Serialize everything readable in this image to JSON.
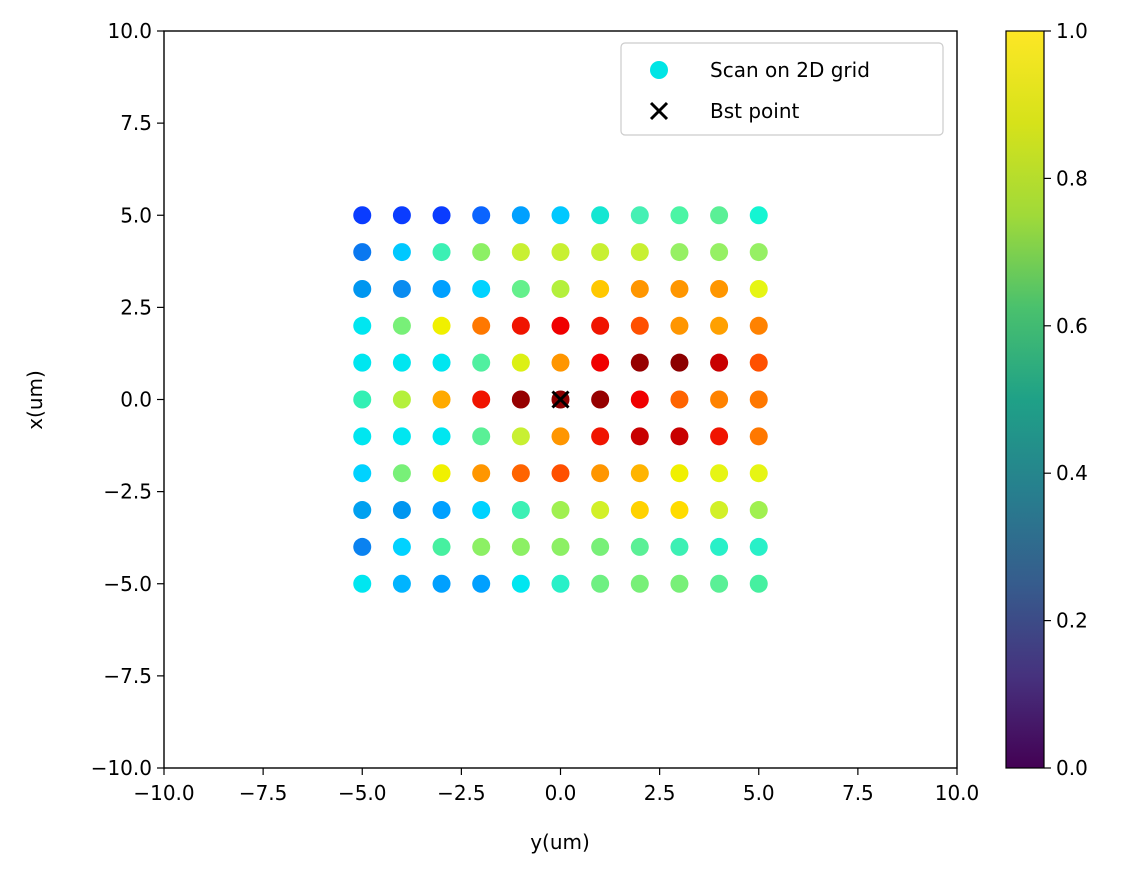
{
  "chart_data": {
    "type": "scatter",
    "title": "",
    "xlabel": "y(um)",
    "ylabel": "x(um)",
    "xlim": [
      -10,
      10
    ],
    "ylim": [
      -10,
      10
    ],
    "xticks": [
      "−10.0",
      "−7.5",
      "−5.0",
      "−2.5",
      "0.0",
      "2.5",
      "5.0",
      "7.5",
      "10.0"
    ],
    "yticks": [
      "−10.0",
      "−7.5",
      "−5.0",
      "−2.5",
      "0.0",
      "2.5",
      "5.0",
      "7.5",
      "10.0"
    ],
    "grid": false,
    "legend_position": "top-right",
    "series": [
      {
        "name": "Scan on 2D grid",
        "marker": "circle",
        "legend_color": "#00e5e5",
        "x_values": [
          -5,
          -4,
          -3,
          -2,
          -1,
          0,
          1,
          2,
          3,
          4,
          5
        ],
        "y_values": [
          5,
          4,
          3,
          2,
          1,
          0,
          -1,
          -2,
          -3,
          -4,
          -5
        ],
        "color_rows": [
          [
            "#0a3cff",
            "#0a3cff",
            "#0a3cff",
            "#0a64ff",
            "#00a0ff",
            "#00c8ff",
            "#14e6d2",
            "#46f0b4",
            "#4bf5a5",
            "#5af096",
            "#14f5d2"
          ],
          [
            "#0a78f0",
            "#00c8ff",
            "#3cf0b4",
            "#8cf064",
            "#c8f032",
            "#c8f032",
            "#c8f032",
            "#c8f032",
            "#96f064",
            "#96f064",
            "#96f064"
          ],
          [
            "#0096f0",
            "#0a8cf0",
            "#00a0ff",
            "#00d2ff",
            "#64f08c",
            "#b4f03c",
            "#ffc800",
            "#ff9600",
            "#ff9600",
            "#ff9600",
            "#e6f514"
          ],
          [
            "#00e6f0",
            "#78f078",
            "#f0f000",
            "#ff7800",
            "#f01400",
            "#f00000",
            "#f01400",
            "#ff5000",
            "#ff9600",
            "#ffa000",
            "#ff8200"
          ],
          [
            "#00e6f0",
            "#00e6f0",
            "#00e6f0",
            "#50f0a0",
            "#dcf014",
            "#ff9600",
            "#f00000",
            "#960000",
            "#8c0000",
            "#c80000",
            "#ff5000"
          ],
          [
            "#32f0b4",
            "#b4f03c",
            "#ffaa00",
            "#f01400",
            "#960000",
            "#8c0000",
            "#960000",
            "#f00000",
            "#ff6400",
            "#ff8200",
            "#ff7800"
          ],
          [
            "#00e6f0",
            "#00e6f0",
            "#00e6f0",
            "#5af096",
            "#c8f032",
            "#ff9600",
            "#f01400",
            "#c80000",
            "#c80000",
            "#f01400",
            "#ff7800"
          ],
          [
            "#00d2ff",
            "#78f078",
            "#f0f000",
            "#ff9600",
            "#ff6400",
            "#ff5000",
            "#ff9600",
            "#ffb400",
            "#f0f000",
            "#e6f514",
            "#e6f514"
          ],
          [
            "#00a0f0",
            "#0096f0",
            "#00a0ff",
            "#00d2ff",
            "#3cf0b4",
            "#a0f050",
            "#d2f028",
            "#ffd200",
            "#ffdc00",
            "#d2f028",
            "#a0f050"
          ],
          [
            "#0a82f0",
            "#00d2ff",
            "#46f0a0",
            "#8cf064",
            "#8cf064",
            "#8cf064",
            "#78f078",
            "#5af096",
            "#3cf0b4",
            "#28f0c8",
            "#28f0c8"
          ],
          [
            "#00e6f0",
            "#00b4ff",
            "#00a0ff",
            "#00a0ff",
            "#00e6f0",
            "#28f0c8",
            "#6ef082",
            "#78f078",
            "#78f078",
            "#5af096",
            "#46f0a0"
          ]
        ]
      },
      {
        "name": "Bst point",
        "marker": "x",
        "color": "#000000",
        "points": [
          {
            "x": 0,
            "y": 0
          }
        ]
      }
    ],
    "colorbar": {
      "colormap": "viridis",
      "range": [
        0,
        1
      ],
      "ticks": [
        "0.0",
        "0.2",
        "0.4",
        "0.6",
        "0.8",
        "1.0"
      ]
    }
  }
}
